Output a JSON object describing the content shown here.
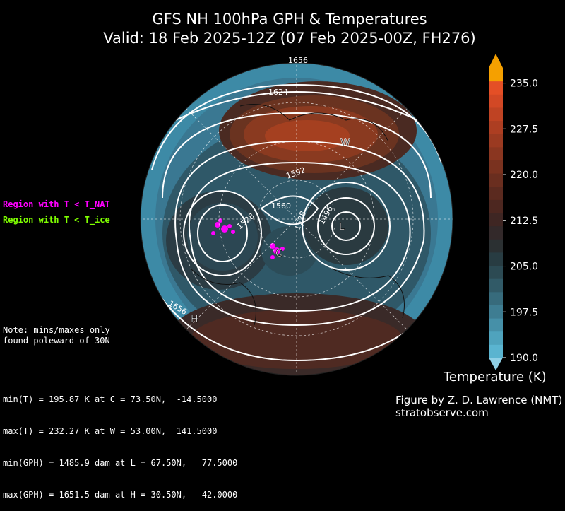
{
  "title": {
    "line1": "GFS NH 100hPa GPH & Temperatures",
    "line2": "Valid: 18 Feb 2025-12Z  (07 Feb 2025-00Z, FH276)"
  },
  "legend": {
    "nat": "Region with T < T_NAT",
    "ice": "Region with T < T_ice",
    "nat_color": "#ff00ff",
    "ice_color": "#7fff00"
  },
  "note": "Note: mins/maxes only\nfound poleward of 30N",
  "stats": [
    "min(T) = 195.87 K at C = 73.50N,  -14.5000",
    "max(T) = 232.27 K at W = 53.00N,  141.5000",
    "min(GPH) = 1485.9 dam at L = 67.50N,   77.5000",
    "max(GPH) = 1651.5 dam at H = 30.50N,  -42.0000"
  ],
  "colorbar": {
    "title": "Temperature (K)",
    "ticks": [
      "235.0",
      "227.5",
      "220.0",
      "212.5",
      "205.0",
      "197.5",
      "190.0"
    ],
    "tick_values": [
      235.0,
      227.5,
      220.0,
      212.5,
      205.0,
      197.5,
      190.0
    ],
    "min": 190.0,
    "max": 237.5,
    "colors": [
      "#5ab4d0",
      "#4fa3bd",
      "#4690a8",
      "#3e7d92",
      "#376b7c",
      "#315a67",
      "#2c4a53",
      "#283c42",
      "#2b3032",
      "#33292a",
      "#3f2623",
      "#4d2720",
      "#5b2a1f",
      "#6a2e1f",
      "#7a321f",
      "#8a3620",
      "#9b3a21",
      "#ad3e22",
      "#bf4323",
      "#d24825",
      "#e44f26",
      "#f5a000"
    ]
  },
  "map": {
    "contour_labels": [
      "1656",
      "1624",
      "1592",
      "1560",
      "1528",
      "1528",
      "1496",
      "1656"
    ],
    "markers": {
      "W": "W",
      "L": "L",
      "C": "C",
      "H": "H"
    }
  },
  "credit": {
    "line1": "Figure by Z. D. Lawrence (NMT)",
    "line2": "stratobserve.com"
  }
}
